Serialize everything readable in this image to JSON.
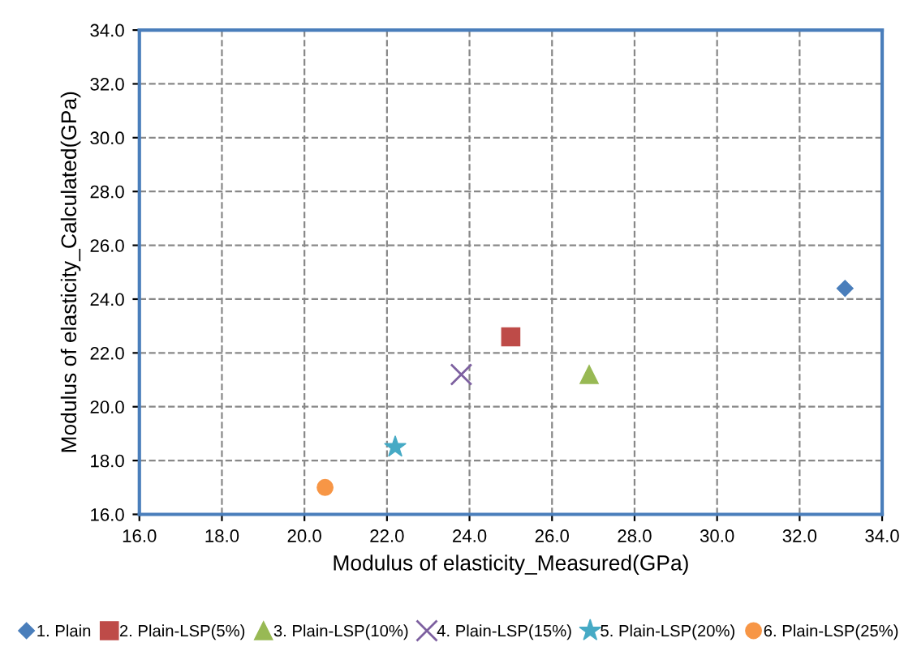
{
  "chart_data": {
    "type": "scatter",
    "xlabel": "Modulus of elasticity_Measured(GPa)",
    "ylabel": "Modulus of elasticity_Calculated(GPa)",
    "xlim": [
      16,
      34
    ],
    "ylim": [
      16,
      34
    ],
    "xticks": [
      {
        "value": 16,
        "label": "16.0"
      },
      {
        "value": 18,
        "label": "18.0"
      },
      {
        "value": 20,
        "label": "20.0"
      },
      {
        "value": 22,
        "label": "22.0"
      },
      {
        "value": 24,
        "label": "24.0"
      },
      {
        "value": 26,
        "label": "26.0"
      },
      {
        "value": 28,
        "label": "28.0"
      },
      {
        "value": 30,
        "label": "30.0"
      },
      {
        "value": 32,
        "label": "32.0"
      },
      {
        "value": 34,
        "label": "34.0"
      }
    ],
    "yticks": [
      {
        "value": 16,
        "label": "16.0"
      },
      {
        "value": 18,
        "label": "18.0"
      },
      {
        "value": 20,
        "label": "20.0"
      },
      {
        "value": 22,
        "label": "22.0"
      },
      {
        "value": 24,
        "label": "24.0"
      },
      {
        "value": 26,
        "label": "26.0"
      },
      {
        "value": 28,
        "label": "28.0"
      },
      {
        "value": 30,
        "label": "30.0"
      },
      {
        "value": 32,
        "label": "32.0"
      },
      {
        "value": 34,
        "label": "34.0"
      }
    ],
    "grid": true,
    "legend": "bottom",
    "series": [
      {
        "name": "1. Plain",
        "color": "#4a7ebb",
        "marker": "diamond",
        "x": [
          33.1
        ],
        "values": [
          24.4
        ]
      },
      {
        "name": "2. Plain-LSP(5%)",
        "color": "#be4b48",
        "marker": "square",
        "x": [
          25.0
        ],
        "values": [
          22.6
        ]
      },
      {
        "name": "3. Plain-LSP(10%)",
        "color": "#98b954",
        "marker": "triangle",
        "x": [
          26.9
        ],
        "values": [
          21.2
        ]
      },
      {
        "name": "4. Plain-LSP(15%)",
        "color": "#7d60a0",
        "marker": "cross",
        "x": [
          23.8
        ],
        "values": [
          21.2
        ]
      },
      {
        "name": "5. Plain-LSP(20%)",
        "color": "#46aac5",
        "marker": "star",
        "x": [
          22.2
        ],
        "values": [
          18.5
        ]
      },
      {
        "name": "6. Plain-LSP(25%)",
        "color": "#f79646",
        "marker": "circle",
        "x": [
          20.5
        ],
        "values": [
          17.0
        ]
      }
    ]
  }
}
